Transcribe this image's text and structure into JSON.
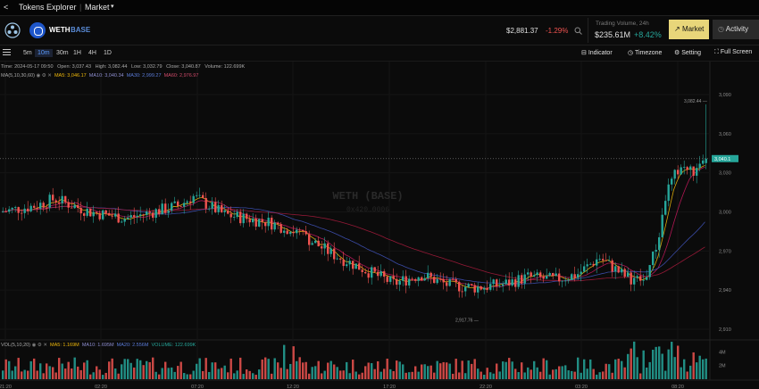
{
  "topbar": {
    "back": "<",
    "title": "Tokens Explorer",
    "sep": "|",
    "section": "Market",
    "caret": "▾"
  },
  "pair": {
    "base": "WETH",
    "quote": "BASE",
    "price": "$2,881.37",
    "change": "-1.29%"
  },
  "volume": {
    "label": "Trading Volume, 24h",
    "value": "$235.61M",
    "change": "+8.42%"
  },
  "tabs": {
    "market": "Market",
    "activity": "Activity"
  },
  "intervals": [
    "5m",
    "10m",
    "30m",
    "1H",
    "4H",
    "1D"
  ],
  "selected_interval": "10m",
  "tools": {
    "indicator": "Indicator",
    "timezone": "Timezone",
    "setting": "Setting",
    "fullscreen": "Full Screen"
  },
  "ohlc": {
    "time": "Time: 2024-05-17 09:50",
    "open": "Open: 3,037.43",
    "high": "High: 3,082.44",
    "low": "Low: 3,032.79",
    "close": "Close: 3,040.87",
    "volume": "Volume: 122.699K"
  },
  "ma": {
    "label": "MA(5,10,30,60)",
    "ma5": "MA5: 3,046.17",
    "ma10": "MA10: 3,040.34",
    "ma30": "MA30: 2,999.27",
    "ma60": "MA60: 2,976.97"
  },
  "vol_ma": {
    "label": "VOL(5,10,20)",
    "ma5": "MA5: 1.169M",
    "ma10": "MA10: 1.695M",
    "ma20": "MA20: 2.556M",
    "volume": "VOLUME: 122.699K"
  },
  "watermark": {
    "title": "WETH (BASE)",
    "address": "0x420…0006"
  },
  "price_ticks": [
    "3,090",
    "3,060",
    "3,030",
    "3,000",
    "2,970",
    "2,940",
    "2,910"
  ],
  "last_price_tag": "3,040.1",
  "high_marker": "3,082.44",
  "low_marker": "2,917.76",
  "time_ticks": [
    "21:20",
    "02:20",
    "07:20",
    "12:20",
    "17:20",
    "22:20",
    "03:20",
    "08:20"
  ],
  "vol_ticks": [
    "4M",
    "2M"
  ],
  "colors": {
    "up": "#26a69a",
    "down": "#ef5350",
    "ma5": "#f0b90b",
    "ma10": "#c2185b",
    "ma30": "#3f51b5",
    "ma60": "#a31b3b",
    "accent": "#e8d67a"
  },
  "icons": {
    "back": "chevron-left-icon",
    "logo": "layers-icon",
    "token": "token-icon",
    "search": "search-icon",
    "menu": "hamburger-icon"
  }
}
